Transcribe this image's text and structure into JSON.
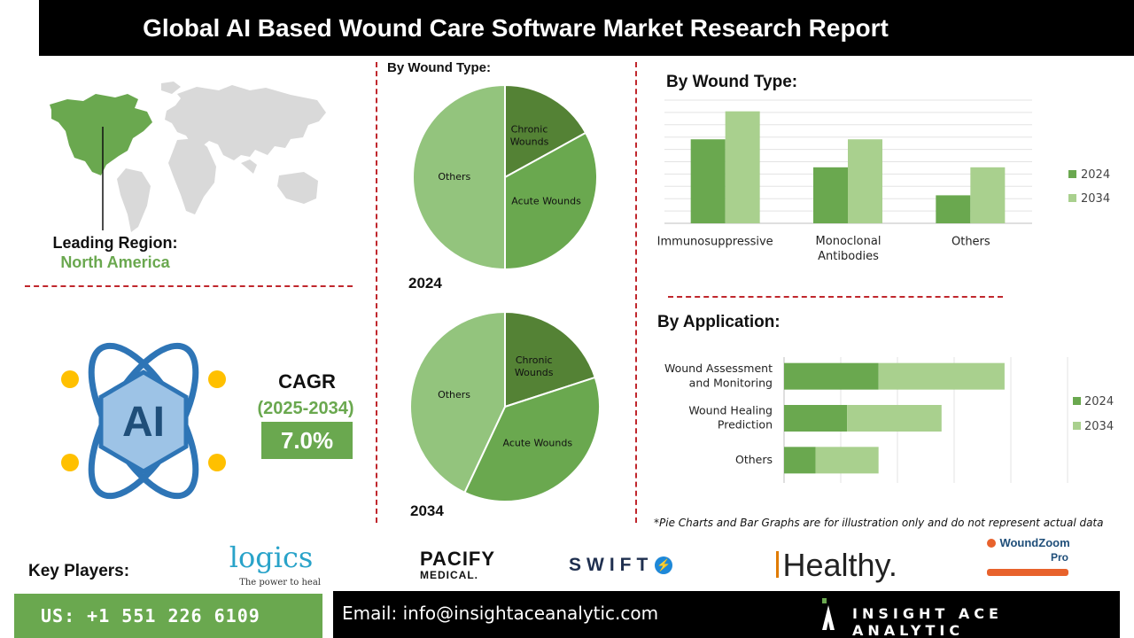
{
  "header": {
    "title": "Global AI Based Wound Care Software Market Research Report"
  },
  "region": {
    "label": "Leading Region:",
    "value": "North America"
  },
  "cagr": {
    "label": "CAGR",
    "period": "(2025-2034)",
    "value": "7.0%"
  },
  "colors": {
    "dark_green": "#548235",
    "mid_green": "#6aa84f",
    "light_green": "#a9d08e",
    "pie_light": "#93c47d",
    "accent_red": "#c0272d"
  },
  "pie_section": {
    "title": "By Wound Type:",
    "year_2024": "2024",
    "year_2034": "2034"
  },
  "bar_section": {
    "title": "By Wound Type:"
  },
  "app_section": {
    "title": "By Application:"
  },
  "footnote": "*Pie Charts and Bar Graphs are for illustration only and do not represent actual data",
  "key_players": {
    "label": "Key Players:",
    "logos": [
      {
        "name": "logics",
        "tagline": "The power to heal"
      },
      {
        "name": "PACIFY",
        "sub": "MEDICAL."
      },
      {
        "name": "SWIFT"
      },
      {
        "name": "Healthy."
      },
      {
        "name": "WoundZoom",
        "sub": "Pro"
      }
    ]
  },
  "contact": {
    "phone": "US: +1 551 226 6109",
    "email": "Email: info@insightaceanalytic.com",
    "brand": "INSIGHT ACE ANALYTIC"
  },
  "chart_data": [
    {
      "type": "pie",
      "year": "2024",
      "labels": [
        "Chronic Wounds",
        "Acute Wounds",
        "Others"
      ],
      "values": [
        17,
        33,
        50
      ],
      "colors": [
        "#548235",
        "#6aa84f",
        "#93c47d"
      ]
    },
    {
      "type": "pie",
      "year": "2034",
      "labels": [
        "Chronic Wounds",
        "Acute Wounds",
        "Others"
      ],
      "values": [
        20,
        37,
        43
      ],
      "colors": [
        "#548235",
        "#6aa84f",
        "#93c47d"
      ]
    },
    {
      "type": "bar",
      "title": "By Wound Type:",
      "categories": [
        "Immunosuppressive",
        "Monoclonal\nAntibodies",
        "Others"
      ],
      "series": [
        {
          "name": "2024",
          "values": [
            3,
            2,
            1
          ],
          "color": "#6aa84f"
        },
        {
          "name": "2034",
          "values": [
            4,
            3,
            2
          ],
          "color": "#a9d08e"
        }
      ],
      "ylim": [
        0,
        4.4
      ],
      "grid": true,
      "legend": "right"
    },
    {
      "type": "bar",
      "orientation": "horizontal",
      "stacked": true,
      "title": "By Application:",
      "categories": [
        "Wound Assessment\nand Monitoring",
        "Wound Healing\nPrediction",
        "Others"
      ],
      "series": [
        {
          "name": "2024",
          "values": [
            3,
            2,
            1
          ],
          "color": "#6aa84f"
        },
        {
          "name": "2034",
          "values": [
            4,
            3,
            2
          ],
          "color": "#a9d08e"
        }
      ],
      "xlim": [
        0,
        9
      ],
      "grid": true,
      "legend": "right"
    }
  ]
}
